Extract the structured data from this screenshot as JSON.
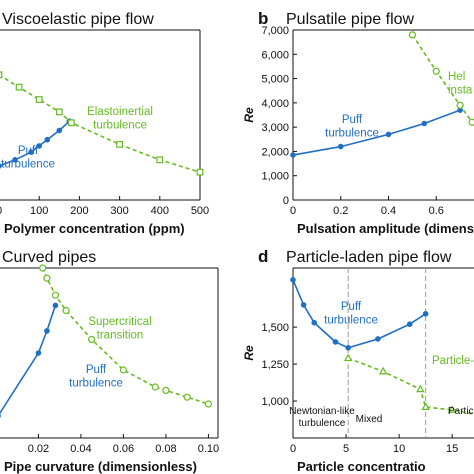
{
  "colors": {
    "blue": "#1f6fc5",
    "green": "#66bb22",
    "axis": "#111111",
    "gray": "#999999"
  },
  "chart_data": [
    {
      "id": "a",
      "type": "line",
      "title": "Viscoelastic pipe flow",
      "xlabel": "Polymer concentration (ppm)",
      "ylabel": "",
      "xlim": [
        -5,
        500
      ],
      "ylim": [
        0,
        5500
      ],
      "xticks": [
        0,
        100,
        200,
        300,
        400,
        500
      ],
      "xtick_labels": [
        "0",
        "100",
        "200",
        "300",
        "400",
        "500"
      ],
      "grid": false,
      "series": [
        {
          "name": "Puff turbulence",
          "style": "solid",
          "marker": "circle",
          "color": "blue",
          "x": [
            0,
            40,
            80,
            100,
            120,
            150,
            175
          ],
          "y": [
            1100,
            1300,
            1550,
            1750,
            1950,
            2250,
            2550
          ]
        },
        {
          "name": "Elastoinertial turbulence",
          "style": "dashed",
          "marker": "square",
          "color": "green",
          "x": [
            0,
            50,
            100,
            150,
            180,
            300,
            400,
            500
          ],
          "y": [
            4050,
            3650,
            3250,
            2850,
            2500,
            1800,
            1300,
            900
          ]
        }
      ],
      "annotations": [
        {
          "id": "puff",
          "text": [
            "Puff",
            "turbulence"
          ],
          "color": "blue"
        },
        {
          "id": "eit",
          "text": [
            "Elastoinertial",
            "turbulence"
          ],
          "color": "green"
        }
      ]
    },
    {
      "id": "b",
      "type": "line",
      "title": "Pulsatile pipe flow",
      "xlabel": "Pulsation amplitude (dimens",
      "ylabel": "Re",
      "xlim": [
        0,
        0.8
      ],
      "ylim": [
        0,
        7000
      ],
      "xticks": [
        0,
        0.2,
        0.4,
        0.6
      ],
      "xtick_labels": [
        "0",
        "0.2",
        "0.4",
        "0.6"
      ],
      "yticks": [
        0,
        1000,
        2000,
        3000,
        4000,
        5000,
        6000,
        7000
      ],
      "ytick_labels": [
        "0",
        "1,000",
        "2,000",
        "3,000",
        "4,000",
        "5,000",
        "6,000",
        "7,000"
      ],
      "grid": false,
      "series": [
        {
          "name": "Puff turbulence",
          "style": "solid",
          "marker": "circle",
          "color": "blue",
          "x": [
            0,
            0.2,
            0.4,
            0.55,
            0.7
          ],
          "y": [
            1850,
            2200,
            2700,
            3150,
            3700
          ]
        },
        {
          "name": "Helical instability",
          "style": "dashed",
          "marker": "circle-open",
          "color": "green",
          "x": [
            0.5,
            0.6,
            0.7,
            0.75,
            0.8
          ],
          "y": [
            6800,
            5300,
            3900,
            3200,
            2800
          ]
        }
      ],
      "annotations": [
        {
          "id": "puff",
          "text": [
            "Puff",
            "turbulence"
          ],
          "color": "blue"
        },
        {
          "id": "helical",
          "text": [
            "Hel",
            "insta"
          ],
          "color": "green"
        }
      ]
    },
    {
      "id": "c",
      "type": "line",
      "title": "Curved pipes",
      "xlabel": "Pipe curvature (dimensionless)",
      "ylabel": "",
      "xlim": [
        0.0005,
        0.1045
      ],
      "ylim": [
        1000,
        6000
      ],
      "xticks": [
        0.02,
        0.04,
        0.06,
        0.08,
        0.1
      ],
      "xtick_labels": [
        "0.02",
        "0.04",
        "0.06",
        "0.08",
        "0.10"
      ],
      "grid": false,
      "series": [
        {
          "name": "Puff turbulence",
          "style": "solid",
          "marker": "circle",
          "color": "blue",
          "x": [
            0.001,
            0.02,
            0.024,
            0.028
          ],
          "y": [
            1650,
            3500,
            4150,
            4900
          ]
        },
        {
          "name": "Supercritical transition",
          "style": "dashed",
          "marker": "circle-open",
          "color": "green",
          "x": [
            0.022,
            0.024,
            0.028,
            0.033,
            0.045,
            0.06,
            0.075,
            0.08,
            0.09,
            0.1
          ],
          "y": [
            6000,
            5700,
            5200,
            4750,
            3900,
            3000,
            2500,
            2400,
            2200,
            2000
          ]
        }
      ],
      "annotations": [
        {
          "id": "puff",
          "text": [
            "Puff",
            "turbulence"
          ],
          "color": "blue"
        },
        {
          "id": "super",
          "text": [
            "Supercritical",
            "transition"
          ],
          "color": "green"
        }
      ]
    },
    {
      "id": "d",
      "type": "line",
      "title": "Particle-laden pipe flow",
      "xlabel": "Particle concentratio",
      "ylabel": "Re",
      "xlim": [
        0,
        18
      ],
      "ylim": [
        750,
        1900
      ],
      "xticks": [
        0,
        5,
        10,
        15
      ],
      "xtick_labels": [
        "0",
        "5",
        "10",
        "15"
      ],
      "yticks": [
        1000,
        1250,
        1500
      ],
      "ytick_labels": [
        "1,000",
        "1,250",
        "1,500"
      ],
      "grid": false,
      "vlines": [
        5.2,
        12.5
      ],
      "series": [
        {
          "name": "Puff turbulence",
          "style": "solid",
          "marker": "circle",
          "color": "blue",
          "x": [
            0,
            1,
            2,
            4,
            5.2,
            8,
            11,
            12.5
          ],
          "y": [
            1820,
            1650,
            1530,
            1400,
            1360,
            1420,
            1520,
            1590
          ]
        },
        {
          "name": "Particle-induced",
          "style": "dashed",
          "marker": "triangle",
          "color": "green",
          "x": [
            5.2,
            8.5,
            12,
            12.5,
            15,
            18
          ],
          "y": [
            1290,
            1200,
            1080,
            960,
            940,
            900
          ]
        }
      ],
      "annotations": [
        {
          "id": "puff",
          "text": [
            "Puff",
            "turbulence"
          ],
          "color": "blue"
        },
        {
          "id": "pind",
          "text": [
            "Particle-"
          ],
          "color": "green"
        },
        {
          "id": "reg1",
          "text": [
            "Newtonian-like",
            "turbulence"
          ],
          "color": "axis"
        },
        {
          "id": "reg2",
          "text": [
            "Mixed"
          ],
          "color": "axis"
        },
        {
          "id": "reg3",
          "text": [
            "Particle"
          ],
          "color": "axis"
        }
      ]
    }
  ],
  "panel_letters": [
    "b",
    "d"
  ]
}
